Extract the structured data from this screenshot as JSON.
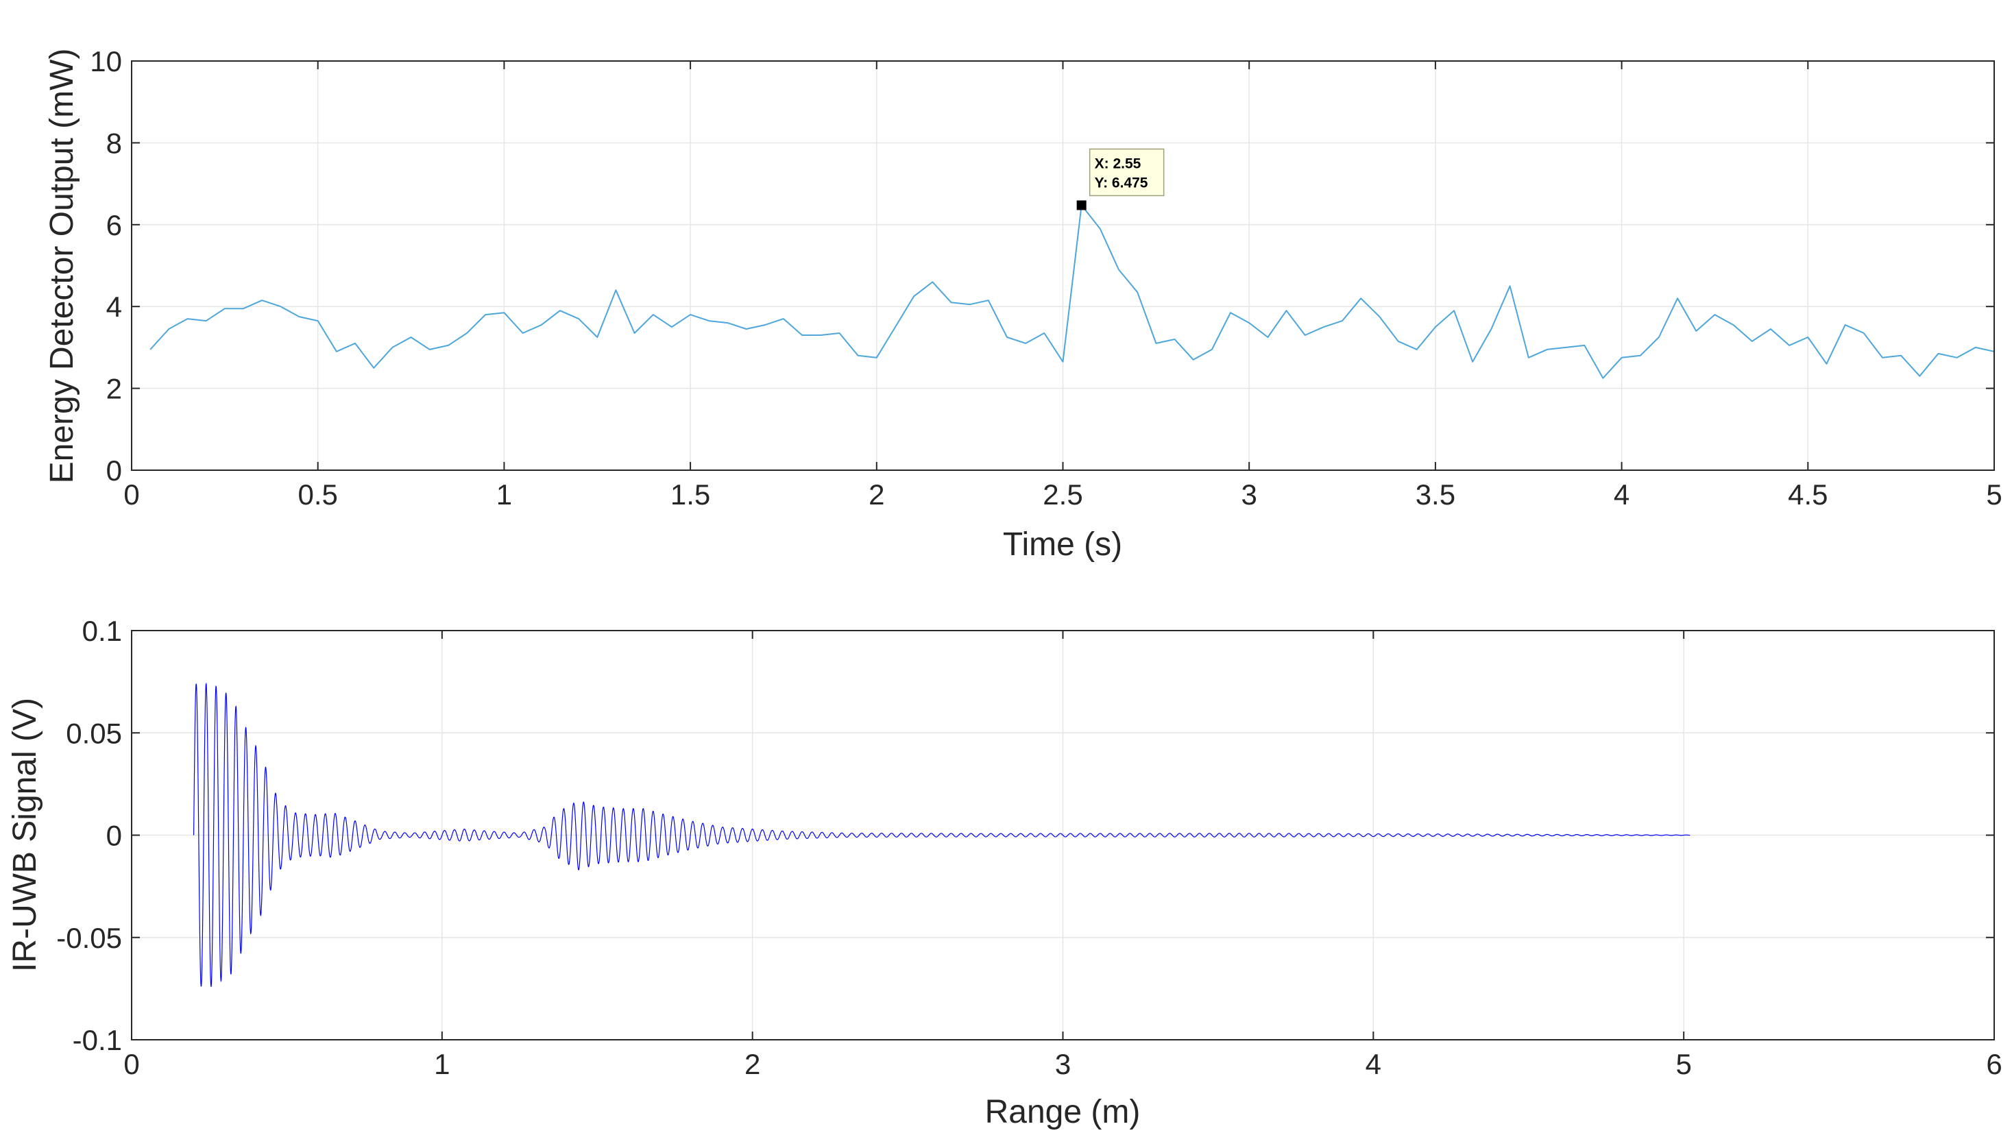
{
  "chart_data": [
    {
      "type": "line",
      "xlabel": "Time (s)",
      "ylabel": "Energy Detector Output (mW)",
      "xlim": [
        0,
        5
      ],
      "ylim": [
        0,
        10
      ],
      "xticks": [
        0,
        0.5,
        1,
        1.5,
        2,
        2.5,
        3,
        3.5,
        4,
        4.5,
        5
      ],
      "xtick_labels": [
        "0",
        "0.5",
        "1",
        "1.5",
        "2",
        "2.5",
        "3",
        "3.5",
        "4",
        "4.5",
        "5"
      ],
      "yticks": [
        0,
        2,
        4,
        6,
        8,
        10
      ],
      "ytick_labels": [
        "0",
        "2",
        "4",
        "6",
        "8",
        "10"
      ],
      "grid": true,
      "series": [
        {
          "color": "#4da6dc",
          "x": [
            0.05,
            0.1,
            0.15,
            0.2,
            0.25,
            0.3,
            0.35,
            0.4,
            0.45,
            0.5,
            0.55,
            0.6,
            0.65,
            0.7,
            0.75,
            0.8,
            0.85,
            0.9,
            0.95,
            1.0,
            1.05,
            1.1,
            1.15,
            1.2,
            1.25,
            1.3,
            1.35,
            1.4,
            1.45,
            1.5,
            1.55,
            1.6,
            1.65,
            1.7,
            1.75,
            1.8,
            1.85,
            1.9,
            1.95,
            2.0,
            2.05,
            2.1,
            2.15,
            2.2,
            2.25,
            2.3,
            2.35,
            2.4,
            2.45,
            2.5,
            2.55,
            2.6,
            2.65,
            2.7,
            2.75,
            2.8,
            2.85,
            2.9,
            2.95,
            3.0,
            3.05,
            3.1,
            3.15,
            3.2,
            3.25,
            3.3,
            3.35,
            3.4,
            3.45,
            3.5,
            3.55,
            3.6,
            3.65,
            3.7,
            3.75,
            3.8,
            3.85,
            3.9,
            3.95,
            4.0,
            4.05,
            4.1,
            4.15,
            4.2,
            4.25,
            4.3,
            4.35,
            4.4,
            4.45,
            4.5,
            4.55,
            4.6,
            4.65,
            4.7,
            4.75,
            4.8,
            4.85,
            4.9,
            4.95,
            5.0
          ],
          "y": [
            2.95,
            3.45,
            3.7,
            3.65,
            3.95,
            3.95,
            4.15,
            4.0,
            3.75,
            3.65,
            2.9,
            3.1,
            2.5,
            3.0,
            3.25,
            2.95,
            3.05,
            3.35,
            3.8,
            3.85,
            3.35,
            3.55,
            3.9,
            3.7,
            3.25,
            4.4,
            3.35,
            3.8,
            3.5,
            3.8,
            3.65,
            3.6,
            3.45,
            3.55,
            3.7,
            3.3,
            3.3,
            3.35,
            2.8,
            2.75,
            3.5,
            4.25,
            4.6,
            4.1,
            4.05,
            4.15,
            3.25,
            3.1,
            3.35,
            2.65,
            6.475,
            5.9,
            4.9,
            4.35,
            3.1,
            3.2,
            2.7,
            2.95,
            3.85,
            3.6,
            3.25,
            3.9,
            3.3,
            3.5,
            3.65,
            4.2,
            3.75,
            3.15,
            2.95,
            3.5,
            3.9,
            2.65,
            3.45,
            4.5,
            2.75,
            2.95,
            3.0,
            3.05,
            2.25,
            2.75,
            2.8,
            3.25,
            4.2,
            3.4,
            3.8,
            3.55,
            3.15,
            3.45,
            3.05,
            3.25,
            2.6,
            3.55,
            3.35,
            2.75,
            2.8,
            2.3,
            2.85,
            2.75,
            3.0,
            2.9
          ]
        }
      ],
      "datatip": {
        "x": 2.55,
        "y": 6.475,
        "line1": "X: 2.55",
        "line2": "Y: 6.475"
      }
    },
    {
      "type": "line",
      "xlabel": "Range (m)",
      "ylabel": "IR-UWB Signal (V)",
      "xlim": [
        0,
        6
      ],
      "ylim": [
        -0.1,
        0.1
      ],
      "xticks": [
        0,
        1,
        2,
        3,
        4,
        5,
        6
      ],
      "xtick_labels": [
        "0",
        "1",
        "2",
        "3",
        "4",
        "5",
        "6"
      ],
      "yticks": [
        -0.1,
        -0.05,
        0,
        0.05,
        0.1
      ],
      "ytick_labels": [
        "-0.1",
        "-0.05",
        "0",
        "0.05",
        "0.1"
      ],
      "grid": true,
      "series": [
        {
          "color": "#0000ff",
          "x_start": 0.2,
          "x_end": 5.02,
          "oscillation_period": 0.032,
          "envelope": [
            [
              0.2,
              0.074
            ],
            [
              0.26,
              0.074
            ],
            [
              0.32,
              0.068
            ],
            [
              0.37,
              0.052
            ],
            [
              0.42,
              0.038
            ],
            [
              0.47,
              0.018
            ],
            [
              0.52,
              0.011
            ],
            [
              0.6,
              0.01
            ],
            [
              0.65,
              0.011
            ],
            [
              0.72,
              0.007
            ],
            [
              0.8,
              0.002
            ],
            [
              0.9,
              0.001
            ],
            [
              0.98,
              0.002
            ],
            [
              1.07,
              0.003
            ],
            [
              1.15,
              0.002
            ],
            [
              1.25,
              0.001
            ],
            [
              1.33,
              0.004
            ],
            [
              1.38,
              0.012
            ],
            [
              1.44,
              0.017
            ],
            [
              1.5,
              0.014
            ],
            [
              1.58,
              0.013
            ],
            [
              1.65,
              0.013
            ],
            [
              1.72,
              0.01
            ],
            [
              1.8,
              0.007
            ],
            [
              1.9,
              0.004
            ],
            [
              2.0,
              0.003
            ],
            [
              2.1,
              0.002
            ],
            [
              2.3,
              0.001
            ],
            [
              2.8,
              0.0008
            ],
            [
              3.6,
              0.0009
            ],
            [
              4.2,
              0.0006
            ],
            [
              4.7,
              0.0003
            ],
            [
              5.02,
              0.0001
            ]
          ]
        }
      ]
    }
  ]
}
